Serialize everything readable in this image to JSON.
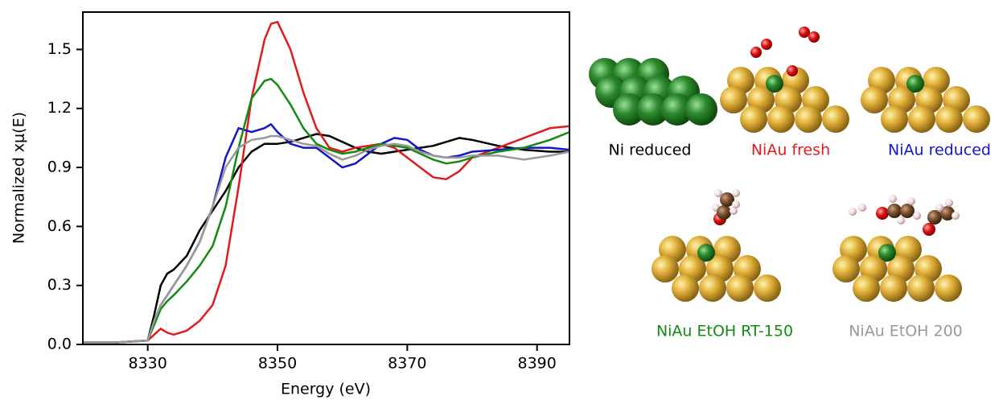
{
  "chart_data": {
    "type": "line",
    "xlabel": "Energy (eV)",
    "ylabel": "Normalized xμ(E)",
    "xlim": [
      8320,
      8395
    ],
    "xticks": [
      8330,
      8350,
      8370,
      8390
    ],
    "ylim": [
      0,
      1.69
    ],
    "yticks": [
      {
        "value": 0,
        "label": "0.0"
      },
      0.3,
      0.6,
      0.9,
      1.2,
      1.5
    ],
    "x": [
      8320,
      8325,
      8330,
      8331,
      8332,
      8333,
      8334,
      8336,
      8338,
      8340,
      8342,
      8344,
      8346,
      8348,
      8349,
      8350,
      8352,
      8354,
      8356,
      8358,
      8360,
      8362,
      8364,
      8366,
      8368,
      8370,
      8372,
      8374,
      8376,
      8378,
      8380,
      8384,
      8388,
      8392,
      8395
    ],
    "series": [
      {
        "name": "Ni reduced",
        "color": "#000000",
        "values": [
          0.01,
          0.01,
          0.02,
          0.15,
          0.3,
          0.36,
          0.38,
          0.45,
          0.58,
          0.68,
          0.78,
          0.9,
          0.98,
          1.02,
          1.02,
          1.02,
          1.03,
          1.05,
          1.07,
          1.06,
          1.03,
          1.0,
          0.98,
          0.97,
          0.98,
          0.99,
          1.0,
          1.01,
          1.03,
          1.05,
          1.04,
          1.01,
          0.99,
          0.98,
          0.98
        ]
      },
      {
        "name": "NiAu fresh",
        "color": "#e31a1c",
        "values": [
          0.01,
          0.01,
          0.02,
          0.05,
          0.08,
          0.06,
          0.05,
          0.07,
          0.12,
          0.2,
          0.4,
          0.8,
          1.25,
          1.55,
          1.63,
          1.64,
          1.5,
          1.28,
          1.1,
          1.0,
          0.98,
          1.0,
          1.01,
          1.02,
          1.0,
          0.95,
          0.9,
          0.85,
          0.84,
          0.88,
          0.95,
          1.0,
          1.05,
          1.1,
          1.11
        ]
      },
      {
        "name": "NiAu reduced",
        "color": "#1515c8",
        "values": [
          0.01,
          0.01,
          0.02,
          0.12,
          0.2,
          0.25,
          0.3,
          0.4,
          0.52,
          0.7,
          0.95,
          1.1,
          1.08,
          1.1,
          1.12,
          1.08,
          1.02,
          1.0,
          1.0,
          0.95,
          0.9,
          0.92,
          0.97,
          1.02,
          1.05,
          1.04,
          0.99,
          0.96,
          0.95,
          0.96,
          0.98,
          0.99,
          1.0,
          1.0,
          0.99
        ]
      },
      {
        "name": "NiAu EtOH RT-150",
        "color": "#138a13",
        "values": [
          0.01,
          0.01,
          0.02,
          0.1,
          0.18,
          0.22,
          0.25,
          0.32,
          0.4,
          0.5,
          0.7,
          1.0,
          1.25,
          1.34,
          1.35,
          1.32,
          1.22,
          1.1,
          1.02,
          0.99,
          0.97,
          0.98,
          1.0,
          1.02,
          1.01,
          1.0,
          0.97,
          0.94,
          0.92,
          0.93,
          0.95,
          0.98,
          1.0,
          1.04,
          1.08
        ]
      },
      {
        "name": "NiAu EtOH 200",
        "color": "#999999",
        "values": [
          0.01,
          0.01,
          0.02,
          0.12,
          0.2,
          0.25,
          0.3,
          0.4,
          0.52,
          0.7,
          0.9,
          1.0,
          1.04,
          1.05,
          1.06,
          1.06,
          1.04,
          1.02,
          1.01,
          0.97,
          0.94,
          0.96,
          0.99,
          1.01,
          1.02,
          1.01,
          0.98,
          0.96,
          0.95,
          0.95,
          0.96,
          0.96,
          0.94,
          0.96,
          0.98
        ]
      }
    ]
  }
}
